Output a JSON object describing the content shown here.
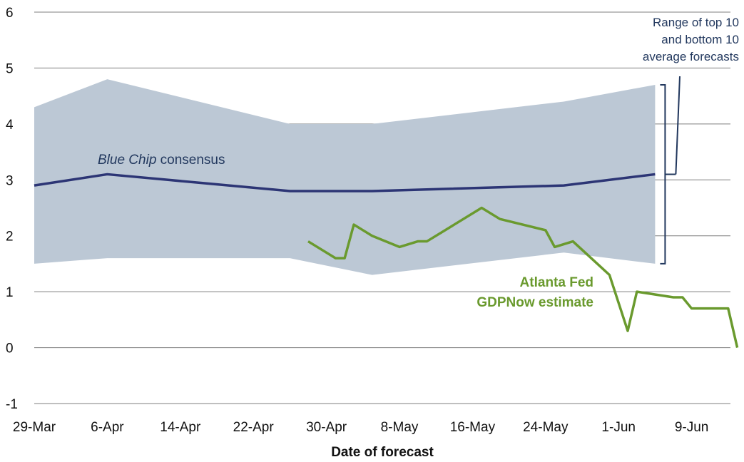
{
  "chart_data": {
    "type": "line",
    "xlabel": "Date of forecast",
    "ylabel": "",
    "ylim": [
      -1,
      6
    ],
    "yticks": [
      "-1",
      "0",
      "1",
      "2",
      "3",
      "4",
      "5",
      "6"
    ],
    "xticks": [
      "29-Mar",
      "6-Apr",
      "14-Apr",
      "22-Apr",
      "30-Apr",
      "8-May",
      "16-May",
      "24-May",
      "1-Jun",
      "9-Jun"
    ],
    "grid": "horizontal",
    "range_band": {
      "name": "Range of top 10 and bottom 10 average forecasts",
      "label_lines": [
        "Range of top 10",
        "and bottom 10",
        "average forecasts"
      ],
      "color": "#bcc8d5",
      "points": [
        {
          "x": "29-Mar",
          "lo": 1.5,
          "hi": 4.3
        },
        {
          "x": "6-Apr",
          "lo": 1.6,
          "hi": 4.8
        },
        {
          "x": "26-Apr",
          "lo": 1.6,
          "hi": 4.0
        },
        {
          "x": "5-May",
          "lo": 1.3,
          "hi": 4.0
        },
        {
          "x": "26-May",
          "lo": 1.7,
          "hi": 4.4
        },
        {
          "x": "5-Jun",
          "lo": 1.5,
          "hi": 4.7
        }
      ]
    },
    "series": [
      {
        "name": "Blue Chip consensus",
        "label_italic": "Blue Chip",
        "label_rest": " consensus",
        "color": "#2c3575",
        "points": [
          {
            "x": "29-Mar",
            "y": 2.9
          },
          {
            "x": "6-Apr",
            "y": 3.1
          },
          {
            "x": "26-Apr",
            "y": 2.8
          },
          {
            "x": "5-May",
            "y": 2.8
          },
          {
            "x": "26-May",
            "y": 2.9
          },
          {
            "x": "5-Jun",
            "y": 3.1
          }
        ]
      },
      {
        "name": "Atlanta Fed GDPNow estimate",
        "label_lines": [
          "Atlanta Fed",
          "GDPNow estimate"
        ],
        "color": "#6a9a2e",
        "points": [
          {
            "x": "28-Apr",
            "y": 1.9
          },
          {
            "x": "1-May",
            "y": 1.6
          },
          {
            "x": "2-May",
            "y": 1.6
          },
          {
            "x": "3-May",
            "y": 2.2
          },
          {
            "x": "5-May",
            "y": 2.0
          },
          {
            "x": "8-May",
            "y": 1.8
          },
          {
            "x": "10-May",
            "y": 1.9
          },
          {
            "x": "11-May",
            "y": 1.9
          },
          {
            "x": "17-May",
            "y": 2.5
          },
          {
            "x": "19-May",
            "y": 2.3
          },
          {
            "x": "24-May",
            "y": 2.1
          },
          {
            "x": "25-May",
            "y": 1.8
          },
          {
            "x": "27-May",
            "y": 1.9
          },
          {
            "x": "31-May",
            "y": 1.3
          },
          {
            "x": "2-Jun",
            "y": 0.3
          },
          {
            "x": "3-Jun",
            "y": 1.0
          },
          {
            "x": "7-Jun",
            "y": 0.9
          },
          {
            "x": "8-Jun",
            "y": 0.9
          },
          {
            "x": "9-Jun",
            "y": 0.7
          },
          {
            "x": "13-Jun",
            "y": 0.7
          },
          {
            "x": "14-Jun",
            "y": 0.0
          }
        ]
      }
    ]
  }
}
